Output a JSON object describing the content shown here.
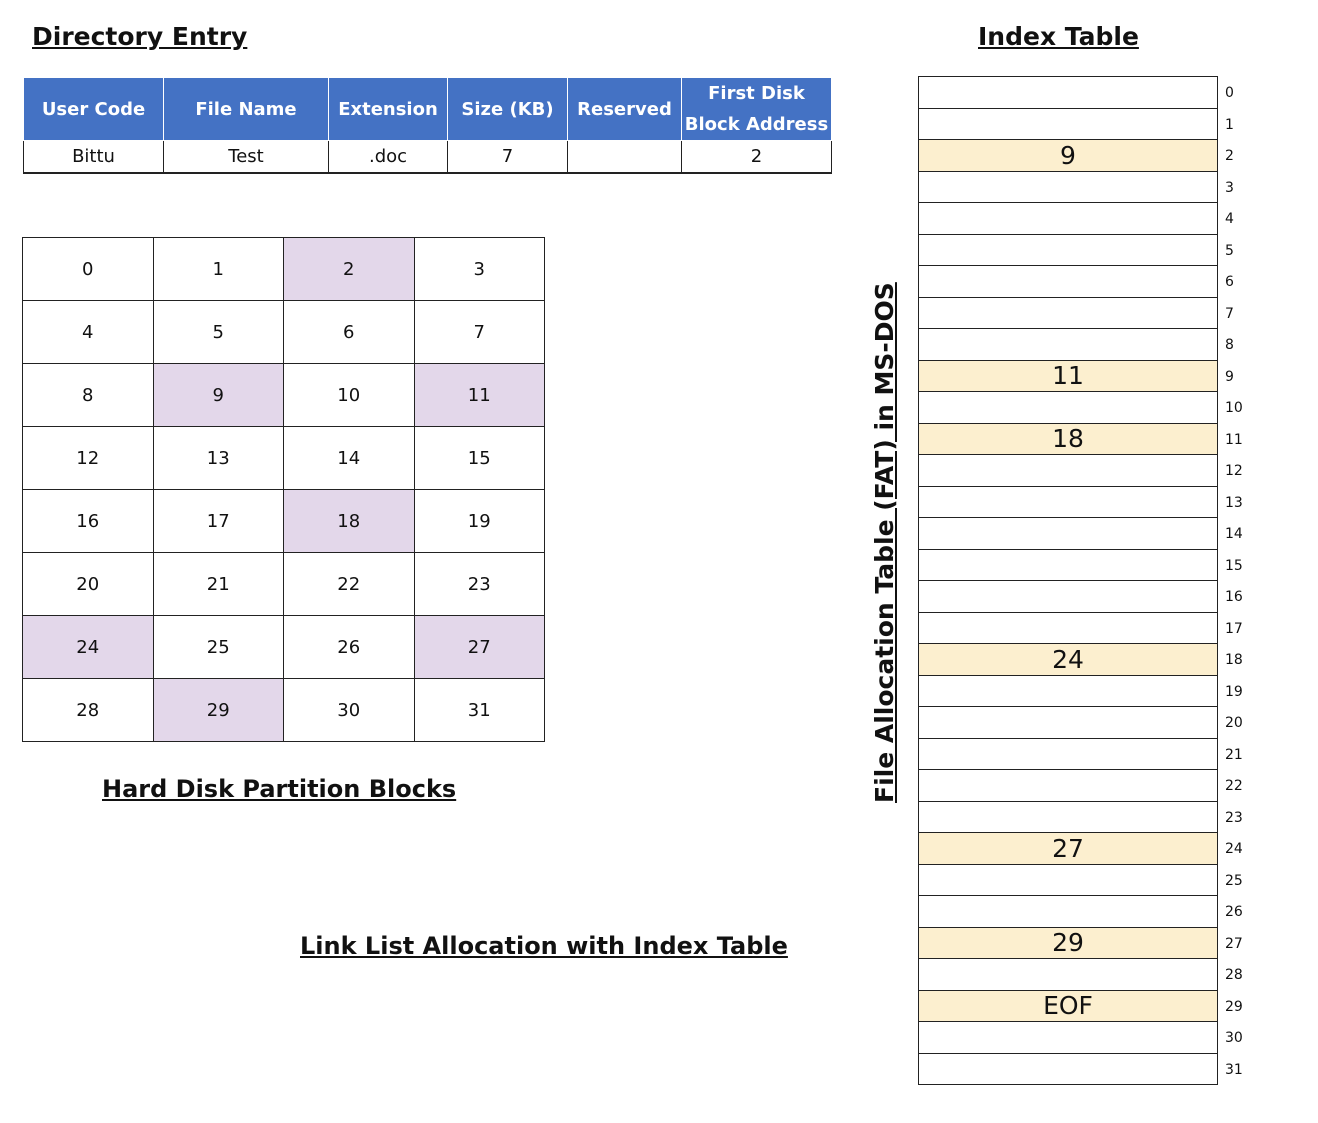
{
  "directory": {
    "title": "Directory Entry",
    "headers": [
      "User Code",
      "File Name",
      "Extension",
      "Size (KB)",
      "Reserved",
      "First Disk Block Address"
    ],
    "row": [
      "Bittu",
      "Test",
      ".doc",
      "7",
      "",
      "2"
    ]
  },
  "index_table_title": "Index Table",
  "disk": {
    "caption": "Hard Disk Partition Blocks",
    "blocks": [
      "0",
      "1",
      "2",
      "3",
      "4",
      "5",
      "6",
      "7",
      "8",
      "9",
      "10",
      "11",
      "12",
      "13",
      "14",
      "15",
      "16",
      "17",
      "18",
      "19",
      "20",
      "21",
      "22",
      "23",
      "24",
      "25",
      "26",
      "27",
      "28",
      "29",
      "30",
      "31"
    ],
    "allocated_blocks": [
      2,
      9,
      11,
      18,
      24,
      27,
      29
    ],
    "allocated_color": "#e3d7ea"
  },
  "fat": {
    "label": "File Allocation Table (FAT) in MS-DOS",
    "entries": [
      "",
      "",
      "9",
      "",
      "",
      "",
      "",
      "",
      "",
      "11",
      "",
      "18",
      "",
      "",
      "",
      "",
      "",
      "",
      "24",
      "",
      "",
      "",
      "",
      "",
      "27",
      "",
      "",
      "29",
      "",
      "EOF",
      "",
      ""
    ],
    "indices": [
      "0",
      "1",
      "2",
      "3",
      "4",
      "5",
      "6",
      "7",
      "8",
      "9",
      "10",
      "11",
      "12",
      "13",
      "14",
      "15",
      "16",
      "17",
      "18",
      "19",
      "20",
      "21",
      "22",
      "23",
      "24",
      "25",
      "26",
      "27",
      "28",
      "29",
      "30",
      "31"
    ],
    "highlight_color": "#fcefcf"
  },
  "caption": "Link List Allocation with Index Table",
  "colors": {
    "header_blue": "#4472c4"
  }
}
